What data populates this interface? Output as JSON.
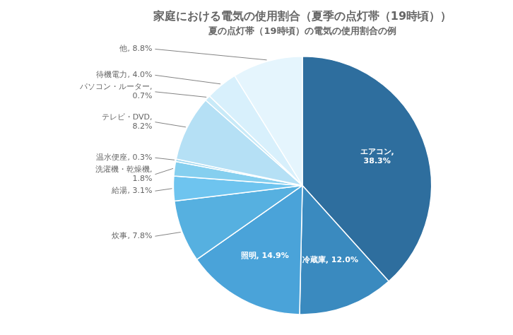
{
  "chart_data": {
    "type": "pie",
    "title": "家庭における電気の使用割合（夏季の点灯帯（19時頃））",
    "subtitle": "夏の点灯帯（19時頃）の電気の使用割合の例",
    "categories": [
      "エアコン,\n38.3%",
      "冷蔵庫, 12.0%",
      "照明, 14.9%",
      "炊事, 7.8%",
      "給湯, 3.1%",
      "洗濯機・乾燥機,\n1.8%",
      "温水便座, 0.3%",
      "テレビ・DVD,\n8.2%",
      "パソコン・ルーター,\n0.7%",
      "待機電力, 4.0%",
      "他, 8.8%"
    ],
    "values": [
      38.3,
      12.0,
      14.9,
      7.8,
      3.1,
      1.8,
      0.3,
      8.2,
      0.7,
      4.0,
      8.8
    ],
    "colors": [
      "#2e6e9e",
      "#3a8abf",
      "#4aa3d9",
      "#56b0e0",
      "#6ec4ef",
      "#85cfef",
      "#a0d8f0",
      "#b5e0f5",
      "#c8eaf8",
      "#d8f0fc",
      "#e5f5fd"
    ]
  }
}
